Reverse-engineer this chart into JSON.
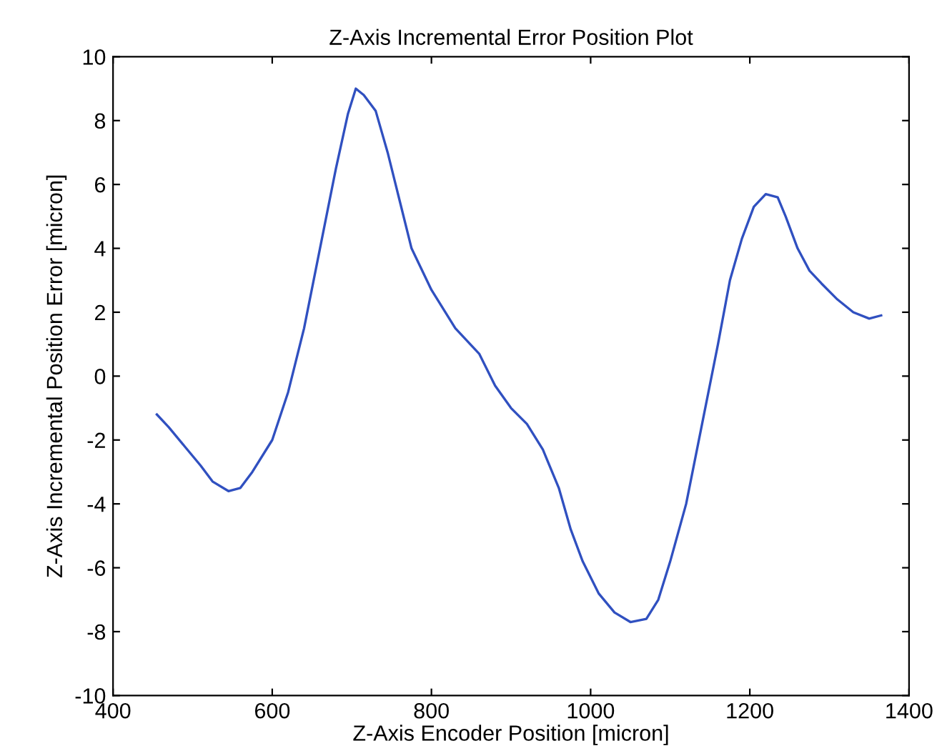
{
  "chart_data": {
    "type": "line",
    "title": "Z-Axis Incremental Error Position Plot",
    "xlabel": "Z-Axis Encoder Position [micron]",
    "ylabel": "Z-Axis Incremental Position Error [micron]",
    "xlim": [
      400,
      1400
    ],
    "ylim": [
      -10,
      10
    ],
    "xticks": [
      400,
      600,
      800,
      1000,
      1200,
      1400
    ],
    "yticks": [
      -10,
      -8,
      -6,
      -4,
      -2,
      0,
      2,
      4,
      6,
      8,
      10
    ],
    "grid": false,
    "legend": false,
    "series": [
      {
        "color": "#3050c0",
        "x": [
          455,
          470,
          490,
          510,
          525,
          545,
          560,
          575,
          600,
          620,
          640,
          660,
          680,
          695,
          705,
          715,
          730,
          745,
          760,
          775,
          800,
          830,
          860,
          880,
          900,
          920,
          940,
          960,
          975,
          990,
          1010,
          1030,
          1050,
          1070,
          1085,
          1100,
          1120,
          1140,
          1160,
          1175,
          1190,
          1205,
          1220,
          1235,
          1245,
          1260,
          1275,
          1290,
          1310,
          1330,
          1350,
          1365
        ],
        "values": [
          -1.2,
          -1.6,
          -2.2,
          -2.8,
          -3.3,
          -3.6,
          -3.5,
          -3.0,
          -2.0,
          -0.5,
          1.5,
          4.0,
          6.5,
          8.2,
          9.0,
          8.8,
          8.3,
          7.0,
          5.5,
          4.0,
          2.7,
          1.5,
          0.7,
          -0.3,
          -1.0,
          -1.5,
          -2.3,
          -3.5,
          -4.8,
          -5.8,
          -6.8,
          -7.4,
          -7.7,
          -7.6,
          -7.0,
          -5.8,
          -4.0,
          -1.5,
          1.0,
          3.0,
          4.3,
          5.3,
          5.7,
          5.6,
          5.0,
          4.0,
          3.3,
          2.9,
          2.4,
          2.0,
          1.8,
          1.9
        ]
      }
    ]
  }
}
